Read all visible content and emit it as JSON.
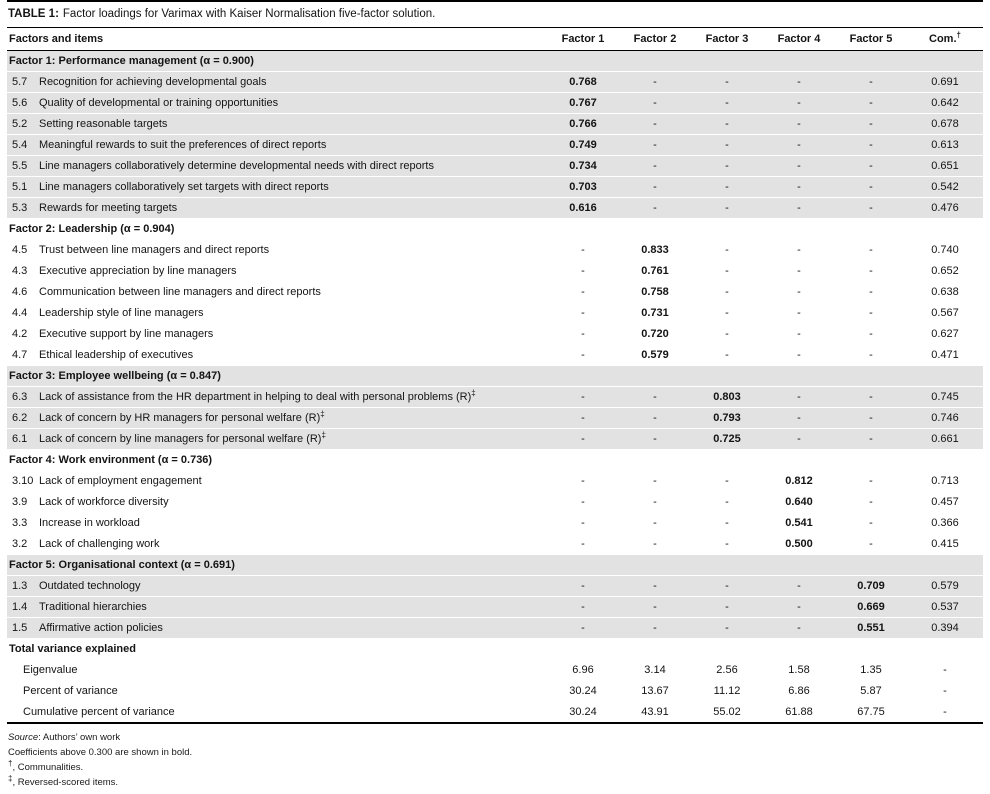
{
  "title": {
    "label": "TABLE 1:",
    "text": "Factor loadings for Varimax with Kaiser Normalisation five-factor solution."
  },
  "table": {
    "columns": [
      {
        "label": "Factors and items"
      },
      {
        "label": "Factor 1"
      },
      {
        "label": "Factor 2"
      },
      {
        "label": "Factor 3"
      },
      {
        "label": "Factor 4"
      },
      {
        "label": "Factor 5"
      },
      {
        "label": "Com.",
        "sup": "†"
      }
    ],
    "sections": [
      {
        "header": "Factor 1: Performance management (α = 0.900)",
        "shaded": true,
        "rows": [
          {
            "num": "5.7",
            "item": "Recognition for achieving developmental goals",
            "values": [
              "0.768",
              "-",
              "-",
              "-",
              "-",
              "0.691"
            ]
          },
          {
            "num": "5.6",
            "item": "Quality of developmental or training opportunities",
            "values": [
              "0.767",
              "-",
              "-",
              "-",
              "-",
              "0.642"
            ]
          },
          {
            "num": "5.2",
            "item": "Setting reasonable targets",
            "values": [
              "0.766",
              "-",
              "-",
              "-",
              "-",
              "0.678"
            ]
          },
          {
            "num": "5.4",
            "item": "Meaningful rewards to suit the preferences of direct reports",
            "values": [
              "0.749",
              "-",
              "-",
              "-",
              "-",
              "0.613"
            ]
          },
          {
            "num": "5.5",
            "item": "Line managers collaboratively determine developmental needs with direct reports",
            "values": [
              "0.734",
              "-",
              "-",
              "-",
              "-",
              "0.651"
            ]
          },
          {
            "num": "5.1",
            "item": "Line managers collaboratively set targets with direct reports",
            "values": [
              "0.703",
              "-",
              "-",
              "-",
              "-",
              "0.542"
            ]
          },
          {
            "num": "5.3",
            "item": "Rewards for meeting targets",
            "values": [
              "0.616",
              "-",
              "-",
              "-",
              "-",
              "0.476"
            ]
          }
        ]
      },
      {
        "header": "Factor 2: Leadership (α = 0.904)",
        "shaded": false,
        "rows": [
          {
            "num": "4.5",
            "item": "Trust between line managers and direct reports",
            "values": [
              "-",
              "0.833",
              "-",
              "-",
              "-",
              "0.740"
            ]
          },
          {
            "num": "4.3",
            "item": "Executive appreciation by line managers",
            "values": [
              "-",
              "0.761",
              "-",
              "-",
              "-",
              "0.652"
            ]
          },
          {
            "num": "4.6",
            "item": "Communication between line managers and direct reports",
            "values": [
              "-",
              "0.758",
              "-",
              "-",
              "-",
              "0.638"
            ]
          },
          {
            "num": "4.4",
            "item": "Leadership style of line managers",
            "values": [
              "-",
              "0.731",
              "-",
              "-",
              "-",
              "0.567"
            ]
          },
          {
            "num": "4.2",
            "item": "Executive support by line managers",
            "values": [
              "-",
              "0.720",
              "-",
              "-",
              "-",
              "0.627"
            ]
          },
          {
            "num": "4.7",
            "item": "Ethical leadership of executives",
            "values": [
              "-",
              "0.579",
              "-",
              "-",
              "-",
              "0.471"
            ]
          }
        ]
      },
      {
        "header": "Factor 3: Employee wellbeing (α = 0.847)",
        "shaded": true,
        "rows": [
          {
            "num": "6.3",
            "item": "Lack of assistance from the HR department in helping to deal with personal problems (R)",
            "sup": "‡",
            "values": [
              "-",
              "-",
              "0.803",
              "-",
              "-",
              "0.745"
            ]
          },
          {
            "num": "6.2",
            "item": "Lack of concern by HR managers for personal welfare (R)",
            "sup": "‡",
            "values": [
              "-",
              "-",
              "0.793",
              "-",
              "-",
              "0.746"
            ]
          },
          {
            "num": "6.1",
            "item": "Lack of concern by line managers for personal welfare (R)",
            "sup": "‡",
            "values": [
              "-",
              "-",
              "0.725",
              "-",
              "-",
              "0.661"
            ]
          }
        ]
      },
      {
        "header": "Factor 4: Work environment (α = 0.736)",
        "shaded": false,
        "rows": [
          {
            "num": "3.10",
            "item": "Lack of employment engagement",
            "values": [
              "-",
              "-",
              "-",
              "0.812",
              "-",
              "0.713"
            ]
          },
          {
            "num": "3.9",
            "item": "Lack of workforce diversity",
            "values": [
              "-",
              "-",
              "-",
              "0.640",
              "-",
              "0.457"
            ]
          },
          {
            "num": "3.3",
            "item": "Increase in workload",
            "values": [
              "-",
              "-",
              "-",
              "0.541",
              "-",
              "0.366"
            ]
          },
          {
            "num": "3.2",
            "item": "Lack of challenging work",
            "values": [
              "-",
              "-",
              "-",
              "0.500",
              "-",
              "0.415"
            ]
          }
        ]
      },
      {
        "header": "Factor 5: Organisational context (α = 0.691)",
        "shaded": true,
        "rows": [
          {
            "num": "1.3",
            "item": "Outdated technology",
            "values": [
              "-",
              "-",
              "-",
              "-",
              "0.709",
              "0.579"
            ]
          },
          {
            "num": "1.4",
            "item": "Traditional hierarchies",
            "values": [
              "-",
              "-",
              "-",
              "-",
              "0.669",
              "0.537"
            ]
          },
          {
            "num": "1.5",
            "item": "Affirmative action policies",
            "values": [
              "-",
              "-",
              "-",
              "-",
              "0.551",
              "0.394"
            ]
          }
        ]
      }
    ],
    "variance": {
      "header": "Total variance explained",
      "rows": [
        {
          "item": "Eigenvalue",
          "values": [
            "6.96",
            "3.14",
            "2.56",
            "1.58",
            "1.35",
            "-"
          ]
        },
        {
          "item": "Percent of variance",
          "values": [
            "30.24",
            "13.67",
            "11.12",
            "6.86",
            "5.87",
            "-"
          ]
        },
        {
          "item": "Cumulative percent of variance",
          "values": [
            "30.24",
            "43.91",
            "55.02",
            "61.88",
            "67.75",
            "-"
          ]
        }
      ]
    }
  },
  "footnotes": [
    {
      "italic_prefix": "Source",
      "text": ": Authors’ own work"
    },
    {
      "text": "Coefficients above 0.300 are shown in bold."
    },
    {
      "sup": "†",
      "text": ", Communalities."
    },
    {
      "sup": "‡",
      "text": ", Reversed-scored items."
    }
  ],
  "colors": {
    "shaded_row": "#e2e2e2",
    "rule": "#000000"
  }
}
